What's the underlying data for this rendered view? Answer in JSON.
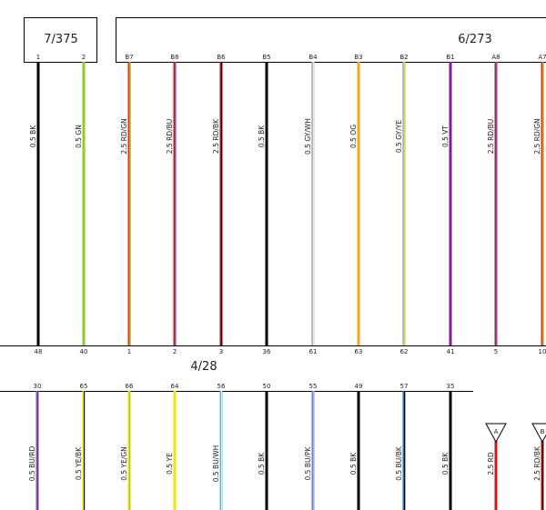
{
  "connectors": {
    "c1": {
      "title": "7/375"
    },
    "c2": {
      "title": "6/273"
    },
    "c3": {
      "title": "4/28"
    }
  },
  "upper_wires": [
    {
      "pin_top": "1",
      "pin_bottom": "48",
      "label": "0.5 BK",
      "colors": [
        "#000000"
      ]
    },
    {
      "pin_top": "2",
      "pin_bottom": "40",
      "label": "0.5 GN",
      "colors": [
        "#8ecb2e"
      ]
    },
    {
      "pin_top": "B7",
      "pin_bottom": "1",
      "label": "2.5 RD/GN",
      "colors": [
        "#d53a10",
        "#8ecb2e"
      ]
    },
    {
      "pin_top": "B8",
      "pin_bottom": "2",
      "label": "2.5 RD/BU",
      "colors": [
        "#c4182a",
        "#4f6fd9"
      ]
    },
    {
      "pin_top": "B6",
      "pin_bottom": "3",
      "label": "2.5 RD/BK",
      "colors": [
        "#b01018",
        "#000000"
      ]
    },
    {
      "pin_top": "B5",
      "pin_bottom": "36",
      "label": "0.5 BK",
      "colors": [
        "#000000"
      ]
    },
    {
      "pin_top": "B4",
      "pin_bottom": "61",
      "label": "0.5 GY/WH",
      "colors": [
        "#b5b5b5",
        "#f2f2f2"
      ]
    },
    {
      "pin_top": "B3",
      "pin_bottom": "63",
      "label": "0.5 OG",
      "colors": [
        "#f6a81c"
      ]
    },
    {
      "pin_top": "B2",
      "pin_bottom": "62",
      "label": "0.5 GY/YE",
      "colors": [
        "#b5b5b5",
        "#e8e000"
      ]
    },
    {
      "pin_top": "B1",
      "pin_bottom": "41",
      "label": "0.5 VT",
      "colors": [
        "#8a1a9a"
      ]
    },
    {
      "pin_top": "A8",
      "pin_bottom": "5",
      "label": "2.5 RD/BU",
      "colors": [
        "#c4182a",
        "#4f6fd9"
      ]
    },
    {
      "pin_top": "A7",
      "pin_bottom": "10",
      "label": "2.5 RD/GN",
      "colors": [
        "#d53a10",
        "#8ecb2e"
      ]
    }
  ],
  "lower_wires": [
    {
      "pin": "30",
      "label": "0.5 BU/RD",
      "colors": [
        "#4f6fd9",
        "#c4182a"
      ]
    },
    {
      "pin": "65",
      "label": "0.5 YE/BK",
      "colors": [
        "#e8e000",
        "#000000"
      ]
    },
    {
      "pin": "66",
      "label": "0.5 YE/GN",
      "colors": [
        "#e8e000",
        "#8ecb2e"
      ]
    },
    {
      "pin": "64",
      "label": "0.5 YE",
      "colors": [
        "#f2e600"
      ]
    },
    {
      "pin": "56",
      "label": "0.5 BU/WH",
      "colors": [
        "#4fb8e0",
        "#f2f2f2"
      ]
    },
    {
      "pin": "50",
      "label": "0.5 BK",
      "colors": [
        "#000000"
      ]
    },
    {
      "pin": "55",
      "label": "0.5 BU/PK",
      "colors": [
        "#4f8ad9",
        "#f0a0c0"
      ]
    },
    {
      "pin": "49",
      "label": "0.5 BK",
      "colors": [
        "#000000"
      ]
    },
    {
      "pin": "57",
      "label": "0.5 BU/BK",
      "colors": [
        "#2a6fb0",
        "#000000"
      ]
    },
    {
      "pin": "35",
      "label": "0.5 BK",
      "colors": [
        "#000000"
      ]
    }
  ],
  "splices": [
    {
      "tag": "A",
      "label": "2.5 RD",
      "colors": [
        "#e0101a"
      ]
    },
    {
      "tag": "B",
      "label": "2.5 RD/BK",
      "colors": [
        "#b01018",
        "#000000"
      ]
    }
  ]
}
